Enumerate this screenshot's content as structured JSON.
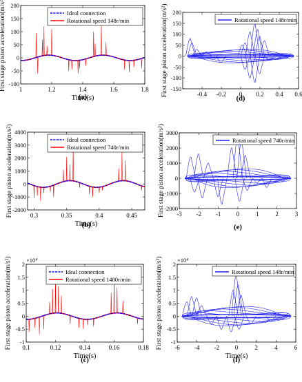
{
  "colors": {
    "ideal": "#0000ff",
    "rot": "#ff0000",
    "orbit": "#2222ee",
    "axis": "#000000"
  },
  "chart_data": [
    {
      "id": "a",
      "type": "line",
      "caption": "(a)",
      "xlabel": "Time(s)",
      "ylabel": "First stage piston acceleration(m/s²)",
      "xlim": [
        1,
        1.8
      ],
      "ylim": [
        -100,
        200
      ],
      "xticks": [
        1,
        1.2,
        1.4,
        1.6,
        1.8
      ],
      "xticklabels": [
        "1",
        "1.2",
        "1.4",
        "1.6",
        "1.8"
      ],
      "yticks": [
        -100,
        -50,
        0,
        50,
        100,
        150,
        200
      ],
      "yticklabels": [
        "-100",
        "-50",
        "0",
        "50",
        "100",
        "150",
        "200"
      ],
      "exponent": "",
      "legend": [
        "Ideal connection",
        "Rotational speed 148r/min"
      ],
      "legend_position": "top-right",
      "ideal": {
        "amplitude": 10,
        "period": 0.35,
        "peaks_at": [
          1.18,
          1.53
        ]
      },
      "spikes": [
        [
          1.1,
          95
        ],
        [
          1.11,
          -60
        ],
        [
          1.14,
          70
        ],
        [
          1.15,
          120
        ],
        [
          1.17,
          45
        ],
        [
          1.2,
          110
        ],
        [
          1.31,
          -50
        ],
        [
          1.33,
          -45
        ],
        [
          1.37,
          -60
        ],
        [
          1.38,
          -40
        ],
        [
          1.42,
          -30
        ],
        [
          1.47,
          100
        ],
        [
          1.48,
          55
        ],
        [
          1.52,
          125
        ],
        [
          1.55,
          60
        ],
        [
          1.67,
          -45
        ],
        [
          1.7,
          -55
        ],
        [
          1.73,
          -35
        ],
        [
          1.78,
          -40
        ]
      ]
    },
    {
      "id": "b",
      "type": "line",
      "caption": "(b)",
      "xlabel": "Time(s)",
      "ylabel": "First stage piston acceleration(m/s²)",
      "xlim": [
        0.29,
        0.47
      ],
      "ylim": [
        -2000,
        4000
      ],
      "xticks": [
        0.3,
        0.35,
        0.4,
        0.45
      ],
      "xticklabels": [
        "0.3",
        "0.35",
        "0.4",
        "0.45"
      ],
      "yticks": [
        -2000,
        -1000,
        0,
        1000,
        2000,
        3000,
        4000
      ],
      "yticklabels": [
        "-2000",
        "-1000",
        "0",
        "1000",
        "2000",
        "3000",
        "4000"
      ],
      "exponent": "",
      "legend": [
        "Ideal connection",
        "Rotational speed 740r/min"
      ],
      "legend_position": "top-right",
      "ideal": {
        "amplitude": 250,
        "period": 0.082,
        "peaks_at": [
          0.355,
          0.437
        ]
      },
      "spikes": [
        [
          0.3,
          -1100
        ],
        [
          0.305,
          -900
        ],
        [
          0.31,
          -1300
        ],
        [
          0.315,
          -700
        ],
        [
          0.325,
          -600
        ],
        [
          0.33,
          -1000
        ],
        [
          0.345,
          1100
        ],
        [
          0.35,
          2100
        ],
        [
          0.355,
          1500
        ],
        [
          0.36,
          2800
        ],
        [
          0.37,
          -300
        ],
        [
          0.385,
          -800
        ],
        [
          0.39,
          -1000
        ],
        [
          0.4,
          -700
        ],
        [
          0.405,
          -500
        ],
        [
          0.43,
          1200
        ],
        [
          0.435,
          2500
        ],
        [
          0.44,
          1800
        ],
        [
          0.465,
          -500
        ]
      ]
    },
    {
      "id": "c",
      "type": "line",
      "caption": "(c)",
      "xlabel": "Time(s)",
      "ylabel": "First stage piston acceleration(m/s²)",
      "xlim": [
        0.1,
        0.18
      ],
      "ylim": [
        -1,
        2
      ],
      "xticks": [
        0.1,
        0.12,
        0.14,
        0.16,
        0.18
      ],
      "xticklabels": [
        "0.1",
        "0.12",
        "0.14",
        "0.16",
        "0.18"
      ],
      "yticks": [
        -1,
        -0.5,
        0,
        0.5,
        1,
        1.5,
        2
      ],
      "yticklabels": [
        "-1",
        "-0.5",
        "0",
        "0.5",
        "1",
        "1.5",
        "2"
      ],
      "exponent": "×10⁴",
      "legend": [
        "Ideal connection",
        "Rotational speed 1480r/min"
      ],
      "legend_position": "top-right",
      "ideal": {
        "amplitude": 0.12,
        "period": 0.041,
        "peaks_at": [
          0.121,
          0.162
        ]
      },
      "spikes": [
        [
          0.102,
          -0.6
        ],
        [
          0.106,
          -0.45
        ],
        [
          0.109,
          -0.7
        ],
        [
          0.112,
          -0.5
        ],
        [
          0.116,
          0.55
        ],
        [
          0.118,
          1.05
        ],
        [
          0.12,
          1.65
        ],
        [
          0.122,
          1.15
        ],
        [
          0.124,
          0.8
        ],
        [
          0.13,
          -0.3
        ],
        [
          0.136,
          -0.45
        ],
        [
          0.139,
          -0.5
        ],
        [
          0.142,
          -0.35
        ],
        [
          0.146,
          -0.4
        ],
        [
          0.158,
          0.9
        ],
        [
          0.16,
          1.5
        ],
        [
          0.162,
          1.1
        ],
        [
          0.166,
          0.6
        ],
        [
          0.176,
          -0.3
        ]
      ]
    },
    {
      "id": "d",
      "type": "line",
      "caption": "(d)",
      "xlabel": "",
      "ylabel": "First stage piston acceleration(m/s²)",
      "xlim": [
        -0.6,
        0.6
      ],
      "ylim": [
        -150,
        200
      ],
      "xticks": [
        -0.4,
        -0.2,
        0,
        0.2,
        0.4,
        0.6
      ],
      "xticklabels": [
        "-0.4",
        "-0.2",
        "0",
        "0.2",
        "0.4",
        "0.6"
      ],
      "yticks": [
        -150,
        -100,
        -50,
        0,
        50,
        100,
        150,
        200
      ],
      "yticklabels": [
        "-150",
        "-100",
        "-50",
        "0",
        "50",
        "100",
        "150",
        "200"
      ],
      "exponent": "",
      "legend": [
        "Rotational speed 148r/min"
      ],
      "legend_position": "top-right",
      "orbit": {
        "xamp": 0.55,
        "yamp": 10
      },
      "spikes": [
        [
          -0.52,
          80
        ],
        [
          -0.5,
          60
        ],
        [
          -0.45,
          30
        ],
        [
          -0.35,
          20
        ],
        [
          0.02,
          50
        ],
        [
          0.05,
          60
        ],
        [
          0.1,
          110
        ],
        [
          0.15,
          150
        ],
        [
          0.18,
          120
        ],
        [
          0.2,
          90
        ],
        [
          0.25,
          70
        ],
        [
          0.3,
          -20
        ],
        [
          0.05,
          -60
        ],
        [
          0.1,
          -100
        ],
        [
          0.15,
          -120
        ],
        [
          0.2,
          -80
        ],
        [
          -0.2,
          -30
        ]
      ]
    },
    {
      "id": "e",
      "type": "line",
      "caption": "(e)",
      "xlabel": "",
      "ylabel": "First stage piston acceleration(m/s²)",
      "xlim": [
        -3,
        3
      ],
      "ylim": [
        -2000,
        3000
      ],
      "xticks": [
        -3,
        -2,
        -1,
        0,
        1,
        2,
        3
      ],
      "xticklabels": [
        "-3",
        "-2",
        "-1",
        "0",
        "1",
        "2",
        "3"
      ],
      "yticks": [
        -2000,
        -1000,
        0,
        1000,
        2000,
        3000
      ],
      "yticklabels": [
        "-2000",
        "-1000",
        "0",
        "1000",
        "2000",
        "3000"
      ],
      "exponent": "",
      "legend": [
        "Rotational speed 740r/min"
      ],
      "legend_position": "top-right",
      "orbit": {
        "xamp": 2.7,
        "yamp": 200
      },
      "spikes": [
        [
          -2.4,
          1400
        ],
        [
          -2.0,
          1600
        ],
        [
          -1.5,
          1000
        ],
        [
          -1.0,
          -1200
        ],
        [
          -0.8,
          -1700
        ],
        [
          -0.3,
          2000
        ],
        [
          0.0,
          2800
        ],
        [
          0.2,
          2500
        ],
        [
          0.4,
          1500
        ],
        [
          -2.2,
          -900
        ],
        [
          -1.8,
          -1300
        ],
        [
          0.1,
          -1500
        ],
        [
          0.5,
          -800
        ],
        [
          1.0,
          -300
        ],
        [
          1.5,
          -600
        ]
      ]
    },
    {
      "id": "f",
      "type": "line",
      "caption": "(f)",
      "xlabel": "Time(s)",
      "ylabel": "First stage piston acceleration(m/s²)",
      "xlim": [
        -6,
        6
      ],
      "ylim": [
        -1,
        2
      ],
      "xticks": [
        -6,
        -4,
        -2,
        0,
        2,
        4,
        6
      ],
      "xticklabels": [
        "-6",
        "-4",
        "-2",
        "0",
        "2",
        "4",
        "6"
      ],
      "yticks": [
        -1,
        -0.5,
        0,
        0.5,
        1,
        1.5,
        2
      ],
      "yticklabels": [
        "-1",
        "-0.5",
        "0",
        "0.5",
        "1",
        "1.5",
        "2"
      ],
      "exponent": "×10⁴",
      "legend": [
        "Rotational speed 148r/min"
      ],
      "legend_position": "top-right",
      "orbit": {
        "xamp": 5.5,
        "yamp": 0.12
      },
      "spikes": [
        [
          -5.0,
          0.55
        ],
        [
          -4.5,
          0.75
        ],
        [
          -4.0,
          0.7
        ],
        [
          -3.5,
          0.4
        ],
        [
          -0.3,
          1.0
        ],
        [
          0.0,
          1.6
        ],
        [
          0.2,
          1.2
        ],
        [
          0.5,
          0.8
        ],
        [
          -2.5,
          -0.3
        ],
        [
          -1.5,
          -0.5
        ],
        [
          -0.5,
          -0.6
        ],
        [
          0.3,
          -0.5
        ],
        [
          1.5,
          -0.3
        ],
        [
          3.5,
          -0.2
        ]
      ]
    }
  ]
}
